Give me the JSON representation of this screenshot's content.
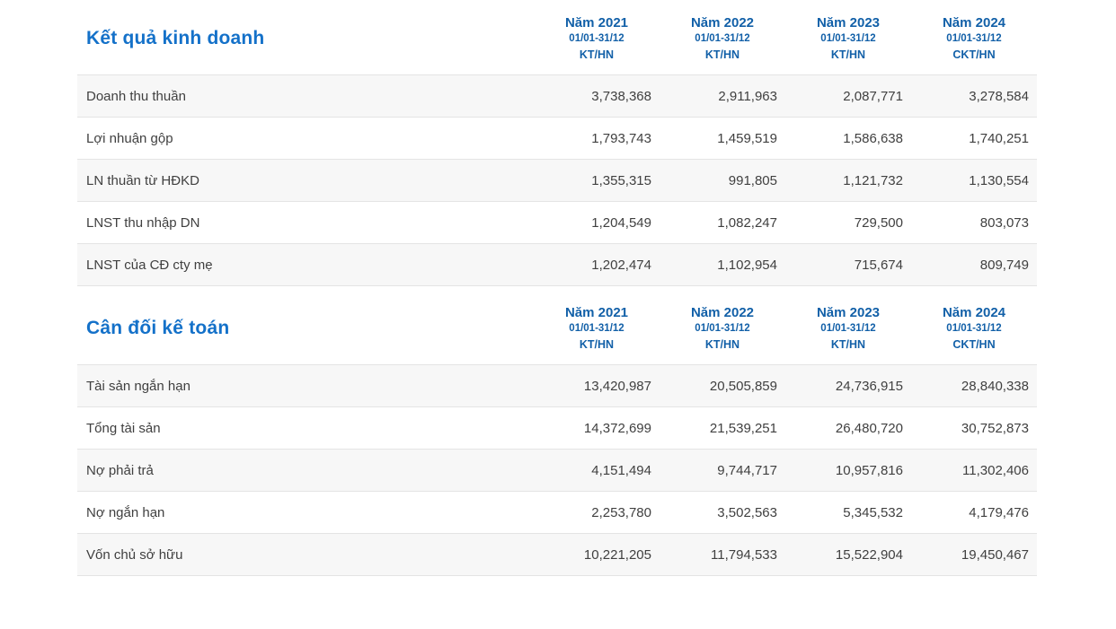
{
  "colors": {
    "title_color": "#1471c9",
    "header_color": "#1260a8",
    "row_text": "#404040",
    "row_stripe": "#f7f7f7",
    "row_border": "#e4e4e4",
    "background": "#ffffff"
  },
  "sections": [
    {
      "title": "Kết quả kinh doanh",
      "columns": [
        {
          "year": "Năm 2021",
          "period": "01/01-31/12",
          "audit": "KT/HN"
        },
        {
          "year": "Năm 2022",
          "period": "01/01-31/12",
          "audit": "KT/HN"
        },
        {
          "year": "Năm 2023",
          "period": "01/01-31/12",
          "audit": "KT/HN"
        },
        {
          "year": "Năm 2024",
          "period": "01/01-31/12",
          "audit": "CKT/HN"
        }
      ],
      "rows": [
        {
          "label": "Doanh thu thuần",
          "values": [
            "3,738,368",
            "2,911,963",
            "2,087,771",
            "3,278,584"
          ]
        },
        {
          "label": "Lợi nhuận gộp",
          "values": [
            "1,793,743",
            "1,459,519",
            "1,586,638",
            "1,740,251"
          ]
        },
        {
          "label": "LN thuần từ HĐKD",
          "values": [
            "1,355,315",
            "991,805",
            "1,121,732",
            "1,130,554"
          ]
        },
        {
          "label": "LNST thu nhập DN",
          "values": [
            "1,204,549",
            "1,082,247",
            "729,500",
            "803,073"
          ]
        },
        {
          "label": "LNST của CĐ cty mẹ",
          "values": [
            "1,202,474",
            "1,102,954",
            "715,674",
            "809,749"
          ]
        }
      ]
    },
    {
      "title": "Cân đối kế toán",
      "columns": [
        {
          "year": "Năm 2021",
          "period": "01/01-31/12",
          "audit": "KT/HN"
        },
        {
          "year": "Năm 2022",
          "period": "01/01-31/12",
          "audit": "KT/HN"
        },
        {
          "year": "Năm 2023",
          "period": "01/01-31/12",
          "audit": "KT/HN"
        },
        {
          "year": "Năm 2024",
          "period": "01/01-31/12",
          "audit": "CKT/HN"
        }
      ],
      "rows": [
        {
          "label": "Tài sản ngắn hạn",
          "values": [
            "13,420,987",
            "20,505,859",
            "24,736,915",
            "28,840,338"
          ]
        },
        {
          "label": "Tổng tài sản",
          "values": [
            "14,372,699",
            "21,539,251",
            "26,480,720",
            "30,752,873"
          ]
        },
        {
          "label": "Nợ phải trả",
          "values": [
            "4,151,494",
            "9,744,717",
            "10,957,816",
            "11,302,406"
          ]
        },
        {
          "label": "Nợ ngắn hạn",
          "values": [
            "2,253,780",
            "3,502,563",
            "5,345,532",
            "4,179,476"
          ]
        },
        {
          "label": "Vốn chủ sở hữu",
          "values": [
            "10,221,205",
            "11,794,533",
            "15,522,904",
            "19,450,467"
          ]
        }
      ]
    }
  ]
}
